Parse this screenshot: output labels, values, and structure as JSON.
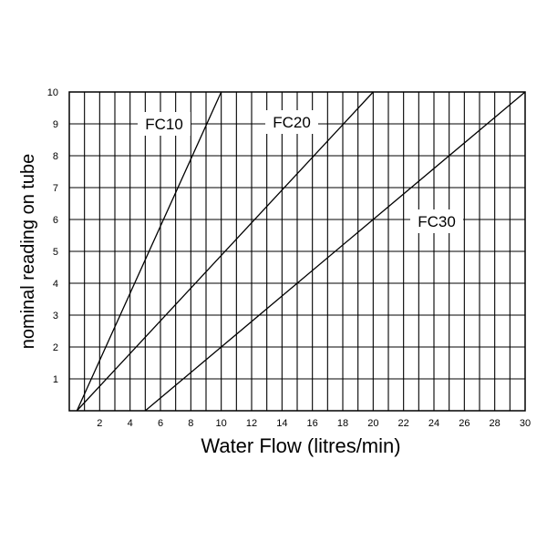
{
  "chart_data": {
    "type": "line",
    "title": "",
    "xlabel": "Water Flow (litres/min)",
    "ylabel": "nominal reading on tube",
    "xlim": [
      0,
      30
    ],
    "ylim": [
      0,
      10
    ],
    "grid": true,
    "x_ticks": [
      2,
      4,
      6,
      8,
      10,
      12,
      14,
      16,
      18,
      20,
      22,
      24,
      26,
      28,
      30
    ],
    "y_ticks": [
      1,
      2,
      3,
      4,
      5,
      6,
      7,
      8,
      9,
      10
    ],
    "x_tick_labels": [
      "2",
      "4",
      "6",
      "8",
      "10",
      "12",
      "14",
      "16",
      "18",
      "20",
      "22",
      "24",
      "26",
      "28",
      "30"
    ],
    "y_tick_labels": [
      "1",
      "2",
      "3",
      "4",
      "5",
      "6",
      "7",
      "8",
      "9",
      "10"
    ],
    "series": [
      {
        "name": "FC10",
        "points": [
          [
            0.5,
            0
          ],
          [
            10,
            10
          ]
        ]
      },
      {
        "name": "FC20",
        "points": [
          [
            0.5,
            0
          ],
          [
            20,
            10
          ]
        ]
      },
      {
        "name": "FC30",
        "points": [
          [
            5,
            0
          ],
          [
            30,
            10
          ]
        ]
      }
    ],
    "legend": "inline labels"
  }
}
